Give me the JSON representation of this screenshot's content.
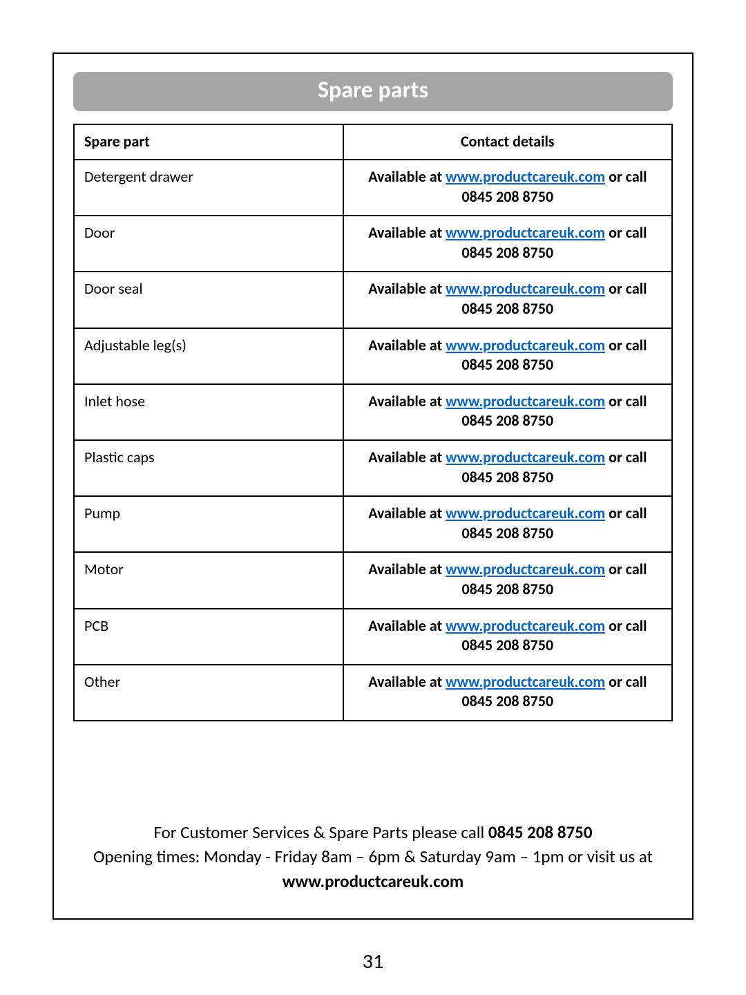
{
  "banner_title": "Spare parts",
  "table": {
    "columns": [
      "Spare part",
      "Contact details"
    ],
    "contact_prefix": "Available at ",
    "contact_url_text": "www.productcareuk.com",
    "contact_suffix": " or call 0845 208 8750",
    "rows": [
      "Detergent drawer",
      "Door",
      "Door seal",
      "Adjustable leg(s)",
      "Inlet hose",
      "Plastic caps",
      "Pump",
      "Motor",
      "PCB",
      "Other"
    ],
    "col_widths_pct": [
      45,
      55
    ],
    "border_color": "#000000",
    "header_fontsize": 22,
    "cell_fontsize": 22,
    "link_color": "#0563c1"
  },
  "footer": {
    "line1_a": "For Customer Services & Spare Parts please call ",
    "line1_bold": "0845 208 8750",
    "line2": "Opening times: Monday - Friday  8am – 6pm & Saturday 9am – 1pm or visit us at ",
    "line2_bold": "www.productcareuk.com"
  },
  "page_number": "31",
  "colors": {
    "banner_bg": "#a6a6a6",
    "banner_text": "#ffffff",
    "page_bg": "#ffffff",
    "text": "#000000"
  },
  "typography": {
    "font_family": "Calibri",
    "banner_fontsize": 34,
    "footer_fontsize": 25,
    "pagenum_fontsize": 30
  }
}
